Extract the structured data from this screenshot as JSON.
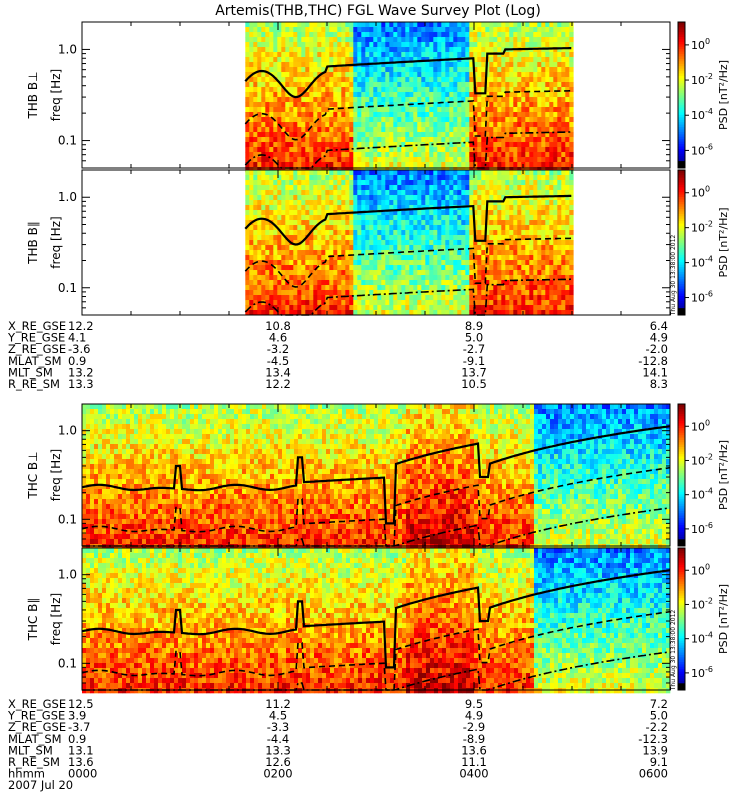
{
  "chart_data": {
    "type": "heatmap",
    "title": "Artemis(THB,THC) FGL Wave Survey Plot (Log)",
    "probes": [
      {
        "name": "THB",
        "panels": [
          {
            "label": "THB B⊥",
            "ylabel": "freq [Hz]"
          },
          {
            "label": "THB B∥",
            "ylabel": "freq [Hz]"
          }
        ],
        "data_window_hhmm": [
          "0140",
          "0500"
        ],
        "ephemeris": {
          "rows": [
            {
              "label": "X_RE_GSE",
              "values": [
                "12.2",
                "10.8",
                "8.9",
                "6.4"
              ]
            },
            {
              "label": "Y_RE_GSE",
              "values": [
                "4.1",
                "4.6",
                "5.0",
                "4.9"
              ]
            },
            {
              "label": "Z_RE_GSE",
              "values": [
                "-3.6",
                "-3.2",
                "-2.7",
                "-2.0"
              ]
            },
            {
              "label": "MLAT_SM",
              "values": [
                "0.9",
                "-4.5",
                "-9.1",
                "-12.8"
              ]
            },
            {
              "label": "MLT_SM",
              "values": [
                "13.2",
                "13.4",
                "13.7",
                "14.1"
              ]
            },
            {
              "label": "R_RE_SM",
              "values": [
                "13.3",
                "12.2",
                "10.5",
                "8.3"
              ]
            }
          ]
        }
      },
      {
        "name": "THC",
        "panels": [
          {
            "label": "THC B⊥",
            "ylabel": "freq [Hz]"
          },
          {
            "label": "THC B∥",
            "ylabel": "freq [Hz]"
          }
        ],
        "data_window_hhmm": [
          "0000",
          "0600"
        ],
        "ephemeris": {
          "rows": [
            {
              "label": "X_RE_GSE",
              "values": [
                "12.5",
                "11.2",
                "9.5",
                "7.2"
              ]
            },
            {
              "label": "Y_RE_GSE",
              "values": [
                "3.9",
                "4.5",
                "4.9",
                "5.0"
              ]
            },
            {
              "label": "Z_RE_GSE",
              "values": [
                "-3.7",
                "-3.3",
                "-2.9",
                "-2.2"
              ]
            },
            {
              "label": "MLAT_SM",
              "values": [
                "0.9",
                "-4.4",
                "-8.9",
                "-12.3"
              ]
            },
            {
              "label": "MLT_SM",
              "values": [
                "13.1",
                "13.3",
                "13.6",
                "13.9"
              ]
            },
            {
              "label": "R_RE_SM",
              "values": [
                "13.6",
                "12.6",
                "11.1",
                "9.1"
              ]
            },
            {
              "label": "hhmm",
              "values": [
                "0000",
                "0200",
                "0400",
                "0600"
              ]
            }
          ],
          "date": "2007 Jul 20"
        }
      }
    ],
    "x": {
      "label": "hhmm",
      "ticks": [
        "0000",
        "0200",
        "0400",
        "0600"
      ],
      "range_hours": [
        0,
        6
      ]
    },
    "y": {
      "scale": "log",
      "range_hz": [
        0.05,
        2.0
      ],
      "tick_values": [
        0.1,
        1.0
      ],
      "tick_labels": [
        "0.1",
        "1.0"
      ]
    },
    "colorbar": {
      "label": "PSD [nT²/Hz]",
      "scale": "log",
      "range": [
        1e-07,
        20
      ],
      "ticks": [
        {
          "value": 1e-06,
          "base": "10",
          "exp": "-6"
        },
        {
          "value": 0.0001,
          "base": "10",
          "exp": "-4"
        },
        {
          "value": 0.01,
          "base": "10",
          "exp": "-2"
        },
        {
          "value": 1,
          "base": "10",
          "exp": "0"
        }
      ]
    },
    "overlay_lines": [
      {
        "name": "upper solid line",
        "style": "solid"
      },
      {
        "name": "middle dashed line",
        "style": "dashed"
      },
      {
        "name": "lower dash-dot line",
        "style": "dash-dot"
      }
    ],
    "timestamp": "Thu Aug 30 13:38:00 2012"
  }
}
